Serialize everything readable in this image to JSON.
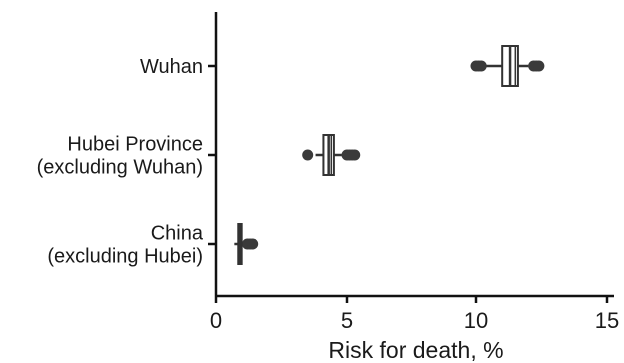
{
  "chart_data": {
    "type": "box",
    "xlabel": "Risk for death, %",
    "ylabel": "",
    "xlim": [
      0,
      15
    ],
    "xticks": [
      "0",
      "5",
      "10",
      "15"
    ],
    "categories": [
      {
        "lines": [
          "Wuhan"
        ],
        "box": {
          "min": 11.0,
          "q1": 11.0,
          "median": 11.3,
          "q3": 11.5,
          "max": 11.6
        },
        "whisker": [
          10.4,
          12.0
        ],
        "outliers": [
          10.0,
          10.1,
          10.2,
          12.2,
          12.3,
          12.4
        ]
      },
      {
        "lines": [
          "Hubei Province",
          "(excluding Wuhan)"
        ],
        "box": {
          "min": 4.1,
          "q1": 4.1,
          "median": 4.3,
          "q3": 4.4,
          "max": 4.5
        },
        "whisker": [
          3.8,
          4.8
        ],
        "outliers": [
          3.5,
          5.0,
          5.1,
          5.2,
          5.3
        ]
      },
      {
        "lines": [
          "China",
          "(excluding Hubei)"
        ],
        "box": {
          "min": 0.85,
          "q1": 0.85,
          "median": 0.9,
          "q3": 0.95,
          "max": 0.98
        },
        "whisker": [
          0.7,
          1.05
        ],
        "outliers": [
          1.2,
          1.3,
          1.4
        ]
      }
    ],
    "grid": false,
    "legend": "none"
  }
}
